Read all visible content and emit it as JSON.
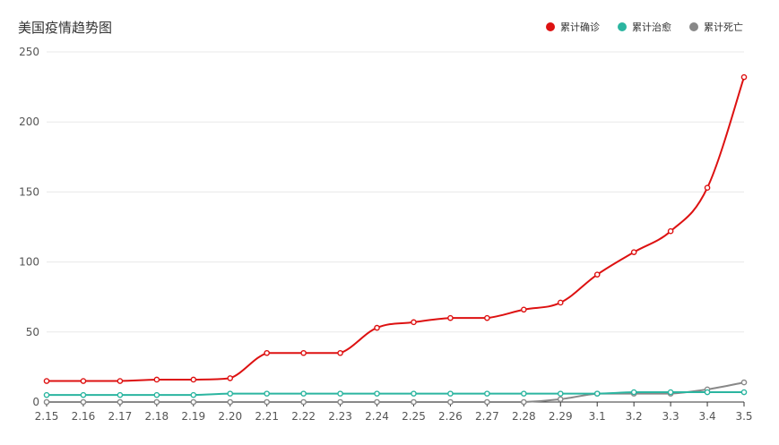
{
  "chart_data": {
    "type": "line",
    "title": "美国疫情趋势图",
    "categories": [
      "2.15",
      "2.16",
      "2.17",
      "2.18",
      "2.19",
      "2.20",
      "2.21",
      "2.22",
      "2.23",
      "2.24",
      "2.25",
      "2.26",
      "2.27",
      "2.28",
      "2.29",
      "3.1",
      "3.2",
      "3.3",
      "3.4",
      "3.5"
    ],
    "series": [
      {
        "name": "累计确诊",
        "color": "#dd1111",
        "values": [
          15,
          15,
          15,
          16,
          16,
          17,
          35,
          35,
          35,
          53,
          57,
          60,
          60,
          66,
          71,
          91,
          107,
          122,
          153,
          232
        ]
      },
      {
        "name": "累计治愈",
        "color": "#2bb5a0",
        "values": [
          5,
          5,
          5,
          5,
          5,
          6,
          6,
          6,
          6,
          6,
          6,
          6,
          6,
          6,
          6,
          6,
          7,
          7,
          7,
          7
        ]
      },
      {
        "name": "累计死亡",
        "color": "#888888",
        "values": [
          0,
          0,
          0,
          0,
          0,
          0,
          0,
          0,
          0,
          0,
          0,
          0,
          0,
          0,
          2,
          6,
          6,
          6,
          9,
          14
        ]
      }
    ],
    "ylim": [
      0,
      250
    ],
    "yticks": [
      0,
      50,
      100,
      150,
      200,
      250
    ],
    "grid": true,
    "legend_position": "top-right"
  }
}
